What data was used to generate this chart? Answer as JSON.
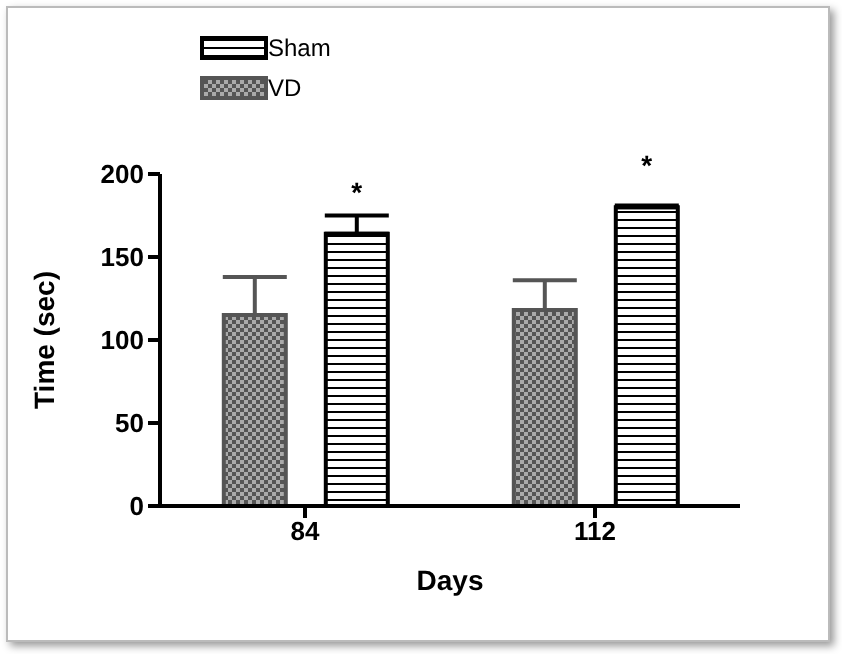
{
  "chart_data": {
    "type": "bar",
    "xlabel": "Days",
    "ylabel": "Time (sec)",
    "categories": [
      "84",
      "112"
    ],
    "series": [
      {
        "name": "Sham",
        "color": "#000000",
        "values": [
          164,
          180
        ],
        "errors": [
          [
            164,
            175
          ],
          [
            180,
            181
          ]
        ]
      },
      {
        "name": "VD",
        "color": "#555555",
        "values": [
          115,
          118
        ],
        "errors": [
          [
            115,
            138
          ],
          [
            118,
            136
          ]
        ]
      }
    ],
    "ylim": [
      0,
      200
    ],
    "yticks": [
      0,
      50,
      100,
      150,
      200
    ],
    "grid": false,
    "legend": "top left",
    "annotations": [
      "*",
      "*"
    ]
  }
}
